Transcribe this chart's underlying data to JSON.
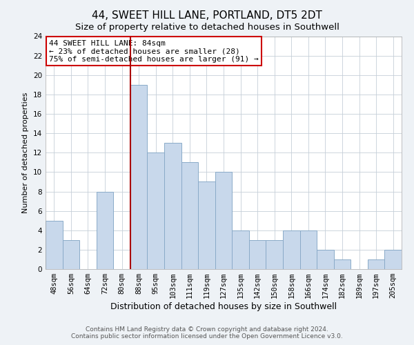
{
  "title": "44, SWEET HILL LANE, PORTLAND, DT5 2DT",
  "subtitle": "Size of property relative to detached houses in Southwell",
  "xlabel": "Distribution of detached houses by size in Southwell",
  "ylabel": "Number of detached properties",
  "bar_labels": [
    "48sqm",
    "56sqm",
    "64sqm",
    "72sqm",
    "80sqm",
    "88sqm",
    "95sqm",
    "103sqm",
    "111sqm",
    "119sqm",
    "127sqm",
    "135sqm",
    "142sqm",
    "150sqm",
    "158sqm",
    "166sqm",
    "174sqm",
    "182sqm",
    "189sqm",
    "197sqm",
    "205sqm"
  ],
  "bar_values": [
    5,
    3,
    0,
    8,
    0,
    19,
    12,
    13,
    11,
    9,
    10,
    4,
    3,
    3,
    4,
    4,
    2,
    1,
    0,
    1,
    2
  ],
  "bar_color": "#c8d8eb",
  "bar_edge_color": "#8aaac8",
  "vline_index": 5,
  "vline_color": "#aa0000",
  "ylim": [
    0,
    24
  ],
  "yticks": [
    0,
    2,
    4,
    6,
    8,
    10,
    12,
    14,
    16,
    18,
    20,
    22,
    24
  ],
  "annotation_title": "44 SWEET HILL LANE: 84sqm",
  "annotation_line1": "← 23% of detached houses are smaller (28)",
  "annotation_line2": "75% of semi-detached houses are larger (91) →",
  "footer1": "Contains HM Land Registry data © Crown copyright and database right 2024.",
  "footer2": "Contains public sector information licensed under the Open Government Licence v3.0.",
  "background_color": "#eef2f6",
  "plot_background": "#ffffff",
  "grid_color": "#c5ced8",
  "title_fontsize": 11,
  "subtitle_fontsize": 9.5,
  "xlabel_fontsize": 9,
  "ylabel_fontsize": 8,
  "tick_fontsize": 7.5,
  "footer_fontsize": 6.5
}
